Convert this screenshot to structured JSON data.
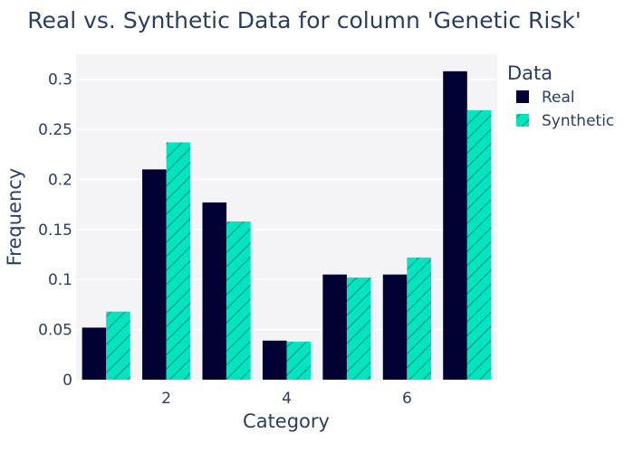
{
  "chart_data": {
    "type": "bar",
    "title": "Real vs. Synthetic Data for column 'Genetic Risk'",
    "xlabel": "Category",
    "ylabel": "Frequency",
    "categories": [
      1,
      2,
      3,
      4,
      5,
      6,
      7
    ],
    "x_ticks": [
      2,
      4,
      6
    ],
    "x_tick_labels": [
      "2",
      "4",
      "6"
    ],
    "xlim": [
      0.5,
      7.5
    ],
    "ylim": [
      0,
      0.325
    ],
    "y_ticks": [
      0,
      0.05,
      0.1,
      0.15,
      0.2,
      0.25,
      0.3
    ],
    "y_tick_labels": [
      "0",
      "0.05",
      "0.1",
      "0.15",
      "0.2",
      "0.25",
      "0.3"
    ],
    "grid": true,
    "legend": {
      "title": "Data",
      "placement": "right"
    },
    "series": [
      {
        "name": "Real",
        "color": "#000033",
        "pattern": "solid",
        "values": [
          0.052,
          0.21,
          0.177,
          0.039,
          0.105,
          0.105,
          0.308
        ]
      },
      {
        "name": "Synthetic",
        "color": "#00e5c0",
        "pattern": "diagonal-hatch",
        "values": [
          0.068,
          0.237,
          0.158,
          0.038,
          0.102,
          0.122,
          0.269
        ]
      }
    ],
    "plot_background": "#f4f4f7"
  }
}
